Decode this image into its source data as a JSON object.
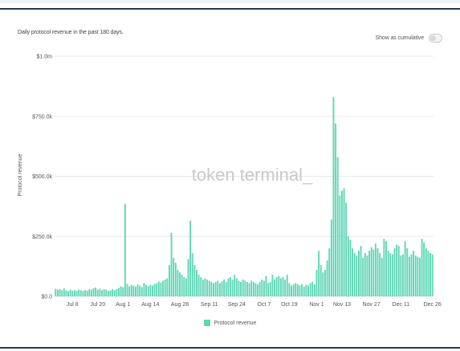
{
  "header": {
    "subtitle": "Daily protocol revenue in the past 180 days.",
    "toggle_label": "Show as cumulative",
    "toggle_on": false
  },
  "watermark": "token terminal_",
  "colors": {
    "bar": "#5fd6b5",
    "grid": "#e6e8eb",
    "axis_text": "#555555",
    "watermark": "#c7c9cc",
    "frame": "#1f3b57"
  },
  "chart_data": {
    "type": "bar",
    "title": "",
    "subtitle": "Daily protocol revenue in the past 180 days.",
    "xlabel": "",
    "ylabel": "Protocol revenue",
    "ylim": [
      0,
      1000000
    ],
    "y_ticks": [
      0,
      250000,
      500000,
      750000,
      1000000
    ],
    "y_tick_labels": [
      "$0.0",
      "$250.0k",
      "$500.0k",
      "$750.0k",
      "$1.0m"
    ],
    "x_tick_labels": [
      "Jul 8",
      "Jul 20",
      "Aug 1",
      "Aug 14",
      "Aug 28",
      "Sep 11",
      "Sep 24",
      "Oct 7",
      "Oct 19",
      "Nov 1",
      "Nov 13",
      "Nov 27",
      "Dec 11",
      "Dec 26"
    ],
    "x_tick_indices": [
      8,
      20,
      32,
      45,
      59,
      73,
      86,
      99,
      111,
      124,
      136,
      150,
      164,
      179
    ],
    "grid": true,
    "legend_position": "bottom-center",
    "series": [
      {
        "name": "Protocol revenue",
        "values": [
          32000,
          28000,
          30000,
          26000,
          33000,
          25000,
          22000,
          28000,
          24000,
          26000,
          23000,
          28000,
          25000,
          22000,
          26000,
          24000,
          30000,
          27000,
          33000,
          37000,
          28000,
          32000,
          26000,
          30000,
          28000,
          23000,
          25000,
          30000,
          26000,
          30000,
          35000,
          42000,
          38000,
          385000,
          52000,
          42000,
          48000,
          45000,
          40000,
          50000,
          45000,
          38000,
          55000,
          48000,
          42000,
          48000,
          45000,
          52000,
          55000,
          62000,
          58000,
          65000,
          70000,
          75000,
          130000,
          265000,
          160000,
          140000,
          110000,
          100000,
          90000,
          80000,
          75000,
          155000,
          315000,
          180000,
          130000,
          110000,
          90000,
          80000,
          70000,
          75000,
          70000,
          65000,
          60000,
          55000,
          60000,
          65000,
          55000,
          62000,
          70000,
          60000,
          75000,
          80000,
          70000,
          90000,
          75000,
          65000,
          60000,
          70000,
          65000,
          60000,
          55000,
          65000,
          60000,
          55000,
          50000,
          60000,
          70000,
          65000,
          85000,
          55000,
          60000,
          90000,
          70000,
          80000,
          85000,
          75000,
          80000,
          70000,
          90000,
          55000,
          45000,
          50000,
          55000,
          50000,
          45000,
          50000,
          40000,
          48000,
          45000,
          55000,
          60000,
          50000,
          110000,
          190000,
          130000,
          100000,
          110000,
          150000,
          200000,
          320000,
          830000,
          720000,
          580000,
          420000,
          440000,
          450000,
          390000,
          250000,
          235000,
          200000,
          180000,
          170000,
          190000,
          210000,
          160000,
          180000,
          170000,
          190000,
          205000,
          195000,
          220000,
          200000,
          180000,
          160000,
          240000,
          230000,
          190000,
          180000,
          175000,
          200000,
          215000,
          210000,
          170000,
          175000,
          230000,
          200000,
          165000,
          175000,
          190000,
          170000,
          165000,
          160000,
          240000,
          225000,
          200000,
          190000,
          180000,
          175000
        ]
      }
    ]
  }
}
